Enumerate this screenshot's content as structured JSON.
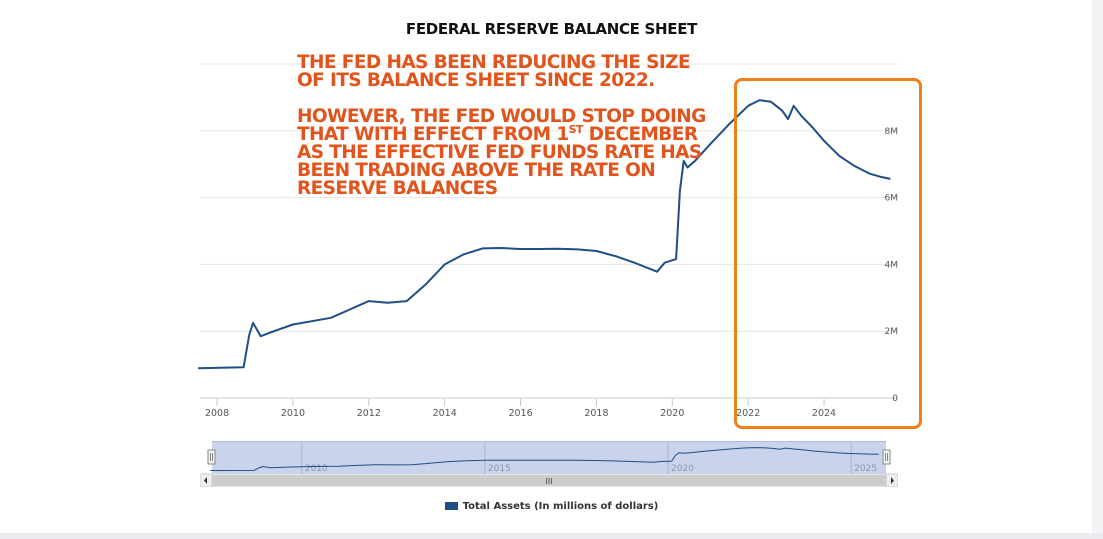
{
  "page": {
    "title": "FEDERAL RESERVE BALANCE SHEET",
    "annotation_paragraph_1": "THE FED HAS BEEN REDUCING THE SIZE OF ITS BALANCE SHEET SINCE 2022.",
    "annotation_paragraph_2_part_1": "HOWEVER, THE FED WOULD STOP DOING THAT WITH EFFECT FROM 1",
    "annotation_paragraph_2_superscript": "ST",
    "annotation_paragraph_2_part_2": " DECEMBER AS THE EFFECTIVE FED FUNDS RATE HAS BEEN TRADING ABOVE THE RATE ON RESERVE BALANCES"
  },
  "colors": {
    "series": "#1f4e84",
    "annotation": "#e2541c",
    "highlight_box": "#ef7f1a",
    "navigator_fill": "#c9d3ec"
  },
  "chart_data": {
    "type": "line",
    "title": "FEDERAL RESERVE BALANCE SHEET",
    "series": [
      {
        "name": "Total Assets (In millions of dollars)",
        "points": [
          [
            2007.5,
            890000
          ],
          [
            2008.7,
            920000
          ],
          [
            2008.85,
            1900000
          ],
          [
            2008.95,
            2250000
          ],
          [
            2009.15,
            1850000
          ],
          [
            2009.5,
            2000000
          ],
          [
            2010.0,
            2200000
          ],
          [
            2010.5,
            2300000
          ],
          [
            2011.0,
            2400000
          ],
          [
            2011.5,
            2650000
          ],
          [
            2012.0,
            2900000
          ],
          [
            2012.5,
            2850000
          ],
          [
            2013.0,
            2900000
          ],
          [
            2013.5,
            3400000
          ],
          [
            2014.0,
            4000000
          ],
          [
            2014.5,
            4300000
          ],
          [
            2015.0,
            4480000
          ],
          [
            2015.5,
            4490000
          ],
          [
            2016.0,
            4460000
          ],
          [
            2016.5,
            4460000
          ],
          [
            2017.0,
            4470000
          ],
          [
            2017.5,
            4450000
          ],
          [
            2018.0,
            4400000
          ],
          [
            2018.5,
            4250000
          ],
          [
            2019.0,
            4050000
          ],
          [
            2019.6,
            3780000
          ],
          [
            2019.8,
            4050000
          ],
          [
            2020.1,
            4160000
          ],
          [
            2020.2,
            6200000
          ],
          [
            2020.3,
            7100000
          ],
          [
            2020.4,
            6900000
          ],
          [
            2020.6,
            7100000
          ],
          [
            2021.0,
            7600000
          ],
          [
            2021.5,
            8200000
          ],
          [
            2022.0,
            8750000
          ],
          [
            2022.3,
            8920000
          ],
          [
            2022.6,
            8870000
          ],
          [
            2022.9,
            8600000
          ],
          [
            2023.05,
            8350000
          ],
          [
            2023.2,
            8750000
          ],
          [
            2023.4,
            8450000
          ],
          [
            2023.7,
            8100000
          ],
          [
            2024.0,
            7700000
          ],
          [
            2024.4,
            7250000
          ],
          [
            2024.8,
            6950000
          ],
          [
            2025.2,
            6720000
          ],
          [
            2025.5,
            6620000
          ],
          [
            2025.75,
            6560000
          ]
        ]
      }
    ],
    "xlabel": "",
    "ylabel": "",
    "x_ticks": [
      "2008",
      "2010",
      "2012",
      "2014",
      "2016",
      "2018",
      "2020",
      "2022",
      "2024"
    ],
    "y_ticks": [
      "0",
      "2M",
      "4M",
      "6M",
      "8M"
    ],
    "xlim": [
      2007.55,
      2025.95
    ],
    "ylim": [
      0,
      10000000
    ],
    "navigator_ticks": [
      "2010",
      "2015",
      "2020",
      "2025"
    ],
    "navigator_scroll_label": "III",
    "legend": "Total Assets (In millions of dollars)"
  }
}
